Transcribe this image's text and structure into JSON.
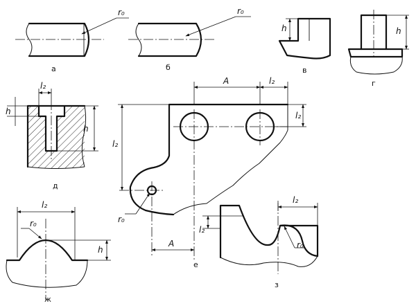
{
  "labels": {
    "radius": "r₀",
    "length": "l₂",
    "height": "h",
    "offset": "A"
  },
  "captions": {
    "a": "а",
    "b": "б",
    "v": "в",
    "g": "г",
    "d": "д",
    "e": "е",
    "zh": "ж",
    "z": "з"
  }
}
